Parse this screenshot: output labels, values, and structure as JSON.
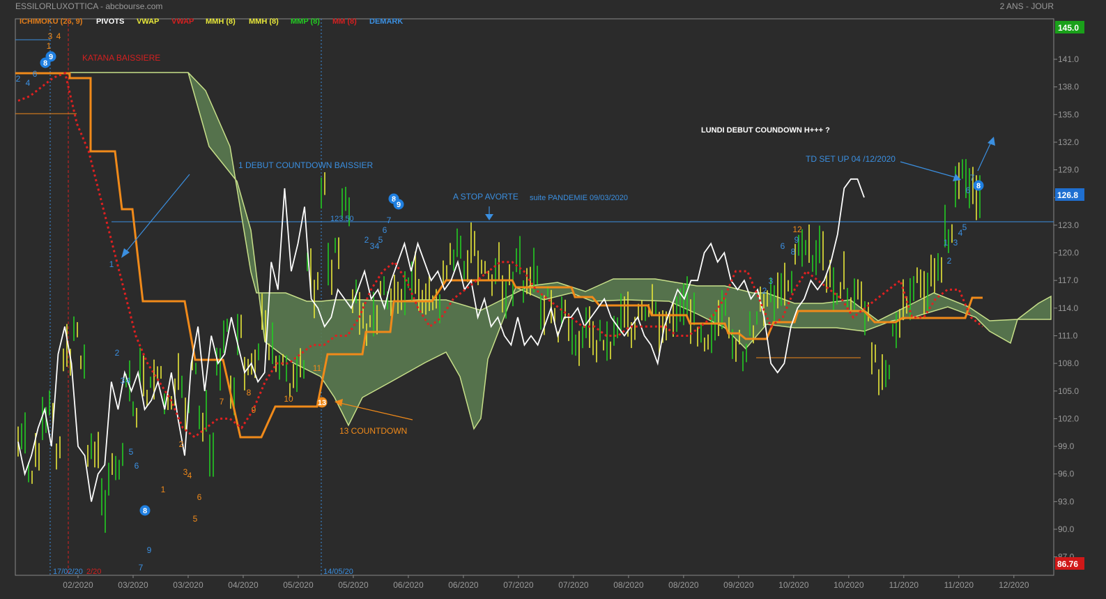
{
  "header": {
    "source": "ESSILORLUXOTTICA - abcbourse.com",
    "period": "2 ANS - JOUR"
  },
  "legend": [
    {
      "label": "ICHIMOKU (26, 9)",
      "color": "#e07c1a"
    },
    {
      "label": "PIVOTS",
      "color": "#ffffff"
    },
    {
      "label": "VWAP",
      "color": "#e8e83a"
    },
    {
      "label": "VWAP",
      "color": "#d42020"
    },
    {
      "label": "MMH (8)",
      "color": "#e8e83a"
    },
    {
      "label": "MMH (8)",
      "color": "#e8e83a"
    },
    {
      "label": "MMP (8)",
      "color": "#22cc22"
    },
    {
      "label": "MM (8)",
      "color": "#d42020"
    },
    {
      "label": "DEMARK",
      "color": "#3b8fe0"
    }
  ],
  "annotations": {
    "katana": "KATANA BAISSIERE",
    "countdown_start": "1 DEBUT COUNTDOWN BAISSIER",
    "stop": "A STOP AVORTE",
    "pandemic": "suite PANDEMIE 09/03/2020",
    "monday": "LUNDI DEBUT COUNDOWN H+++ ?",
    "setup": "TD SET UP 04 /12/2020",
    "countdown13": "13 COUNTDOWN",
    "level": "123.50",
    "date1": "17/02/20",
    "date1b": "2/20",
    "date2": "14/05/20"
  },
  "price_badges": {
    "high": "145.0",
    "last": "126.8",
    "low": "86.76"
  },
  "colors": {
    "background": "#2b2b2b",
    "cloud_fill": "#5a7a50",
    "cloud_edge": "#c8e08a",
    "kijun": "#f08a1a",
    "mm_red": "#e02020",
    "close": "#ffffff",
    "demark": "#3b8fe0",
    "up_bar": "#22cc22",
    "down_bar": "#e8e83a"
  },
  "chart_data": {
    "type": "line",
    "title": "ESSILORLUXOTTICA",
    "ylim": [
      86.76,
      145.0
    ],
    "yticks": [
      87.0,
      90.0,
      93.0,
      96.0,
      99.0,
      102.0,
      105.0,
      108.0,
      111.0,
      114.0,
      117.0,
      120.0,
      123.0,
      126.0,
      129.0,
      132.0,
      135.0,
      138.0,
      141.0
    ],
    "xticks": [
      "02/2020",
      "03/2020",
      "03/2020",
      "04/2020",
      "05/2020",
      "05/2020",
      "06/2020",
      "06/2020",
      "07/2020",
      "07/2020",
      "08/2020",
      "08/2020",
      "09/2020",
      "10/2020",
      "10/2020",
      "11/2020",
      "11/2020",
      "12/2020"
    ],
    "grid": false,
    "series": [
      {
        "name": "PIVOTS",
        "color": "#ffffff",
        "values": [
          99.5,
          96,
          98,
          101,
          103,
          99,
          109,
          112,
          108,
          99,
          98,
          93,
          96,
          97,
          106,
          103,
          107,
          105,
          107,
          103,
          104,
          106,
          103,
          107,
          102,
          98,
          108,
          112,
          105,
          111,
          108,
          109,
          113,
          110,
          107,
          108,
          106,
          107,
          119,
          116,
          127,
          118,
          121,
          125,
          115,
          114,
          112,
          113,
          116,
          115,
          114,
          116,
          118,
          115,
          116,
          114,
          117,
          119,
          121,
          118,
          121,
          119,
          117,
          118,
          116,
          117,
          119,
          116,
          117,
          113,
          115,
          112,
          113,
          111,
          110,
          113,
          110,
          111,
          110,
          112,
          114,
          111,
          113,
          113,
          114,
          112,
          113,
          114,
          115,
          113,
          112,
          111,
          112,
          113,
          111,
          110,
          108,
          112,
          114,
          116,
          115,
          117,
          117,
          120,
          121,
          119,
          120,
          117,
          116,
          117,
          115,
          116,
          113,
          108,
          107,
          108,
          112,
          114,
          115,
          117,
          116,
          117,
          119,
          122,
          127,
          128,
          128,
          126
        ]
      },
      {
        "name": "MM (8)",
        "color": "#e02020",
        "values": [
          136.5,
          137,
          138,
          139,
          139.5,
          134,
          131,
          126,
          121,
          116,
          111,
          108,
          106,
          104,
          101,
          100,
          101,
          102,
          102,
          101,
          103,
          106,
          108,
          108,
          109,
          110,
          110,
          111,
          111,
          113,
          116,
          118,
          119,
          117,
          114,
          112,
          113,
          115,
          116,
          117,
          118,
          119,
          119,
          118,
          116,
          115,
          114,
          113,
          112,
          112,
          111,
          111,
          112,
          112,
          112,
          112,
          111,
          111,
          112,
          113,
          115,
          118,
          118,
          115,
          112,
          113,
          116,
          118,
          117,
          116,
          115,
          113,
          114,
          115,
          116,
          117,
          113,
          113,
          115,
          116,
          116,
          113,
          112
        ]
      }
    ]
  }
}
